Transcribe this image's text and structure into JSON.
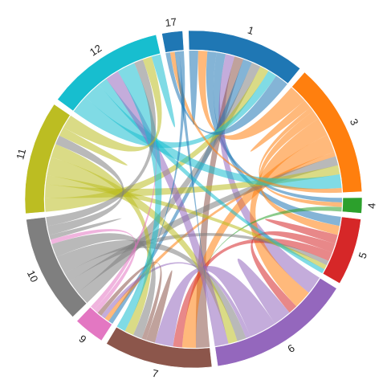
{
  "chart_data": {
    "type": "chord",
    "groups": [
      {
        "name": "1",
        "color": "#1f77b4"
      },
      {
        "name": "3",
        "color": "#ff7f0e"
      },
      {
        "name": "4",
        "color": "#2ca02c"
      },
      {
        "name": "5",
        "color": "#d62728"
      },
      {
        "name": "6",
        "color": "#9467bd"
      },
      {
        "name": "7",
        "color": "#8c564b"
      },
      {
        "name": "9",
        "color": "#e377c2"
      },
      {
        "name": "10",
        "color": "#7f7f7f"
      },
      {
        "name": "11",
        "color": "#bcbd22"
      },
      {
        "name": "12",
        "color": "#17becf"
      },
      {
        "name": "17",
        "color": "#1f77b4"
      }
    ],
    "matrix": [
      [
        2,
        2,
        2,
        2,
        2,
        2,
        2,
        2,
        2,
        2,
        3
      ],
      [
        4,
        2,
        1,
        2,
        4,
        4,
        1,
        2,
        2,
        3,
        1
      ],
      [
        1,
        1,
        0,
        0,
        0,
        1,
        0,
        0,
        0,
        0,
        0
      ],
      [
        2,
        2,
        0,
        2,
        2,
        2,
        0,
        1,
        1,
        1,
        0
      ],
      [
        4,
        4,
        0,
        2,
        4,
        6,
        1,
        2,
        2,
        3,
        0
      ],
      [
        3,
        3,
        0,
        2,
        4,
        2,
        1,
        2,
        2,
        2,
        0
      ],
      [
        1,
        1,
        0,
        0,
        1,
        1,
        0,
        1,
        0,
        1,
        0
      ],
      [
        3,
        3,
        0,
        2,
        4,
        3,
        1,
        1,
        2,
        2,
        0
      ],
      [
        3,
        3,
        0,
        2,
        4,
        3,
        0,
        2,
        2,
        3,
        0
      ],
      [
        4,
        4,
        0,
        2,
        3,
        4,
        0,
        2,
        2,
        2,
        0
      ],
      [
        1,
        1,
        0,
        0,
        1,
        1,
        0,
        0,
        0,
        0,
        0
      ]
    ]
  }
}
